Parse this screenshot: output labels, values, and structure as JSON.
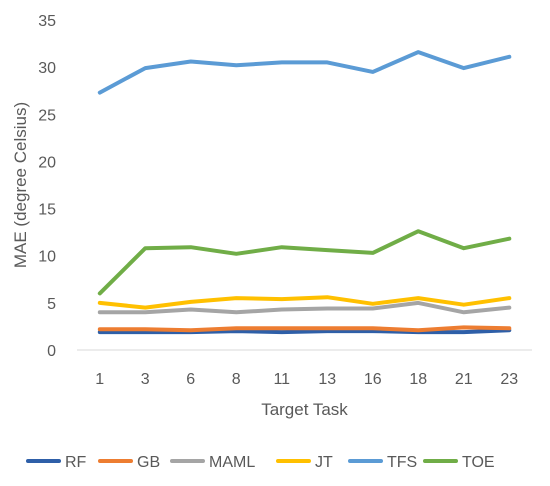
{
  "chart_data": {
    "type": "line",
    "title": "",
    "xlabel": "Target Task",
    "ylabel": "MAE (degree Celsius)",
    "categories": [
      "1",
      "3",
      "6",
      "8",
      "11",
      "13",
      "16",
      "18",
      "21",
      "23"
    ],
    "ylim": [
      0,
      35
    ],
    "yticks": [
      0,
      5,
      10,
      15,
      20,
      25,
      30,
      35
    ],
    "grid": false,
    "legend_position": "bottom",
    "series": [
      {
        "name": "RF",
        "color": "#2E5FA8",
        "values": [
          1.9,
          1.9,
          1.9,
          2.0,
          1.9,
          2.0,
          2.0,
          1.9,
          1.9,
          2.1
        ]
      },
      {
        "name": "GB",
        "color": "#ED7D31",
        "values": [
          2.2,
          2.2,
          2.1,
          2.3,
          2.3,
          2.3,
          2.3,
          2.1,
          2.4,
          2.3
        ]
      },
      {
        "name": "MAML",
        "color": "#A5A5A5",
        "values": [
          4.0,
          4.0,
          4.3,
          4.0,
          4.3,
          4.4,
          4.4,
          5.0,
          4.0,
          4.5
        ]
      },
      {
        "name": "JT",
        "color": "#FFC000",
        "values": [
          5.0,
          4.5,
          5.1,
          5.5,
          5.4,
          5.6,
          4.9,
          5.5,
          4.8,
          5.5
        ]
      },
      {
        "name": "TFS",
        "color": "#5B9BD5",
        "values": [
          27.3,
          29.9,
          30.6,
          30.2,
          30.5,
          30.5,
          29.5,
          31.6,
          29.9,
          31.1
        ]
      },
      {
        "name": "TOE",
        "color": "#70AD47",
        "values": [
          6.0,
          10.8,
          10.9,
          10.2,
          10.9,
          10.6,
          10.3,
          12.6,
          10.8,
          11.8
        ]
      }
    ]
  }
}
